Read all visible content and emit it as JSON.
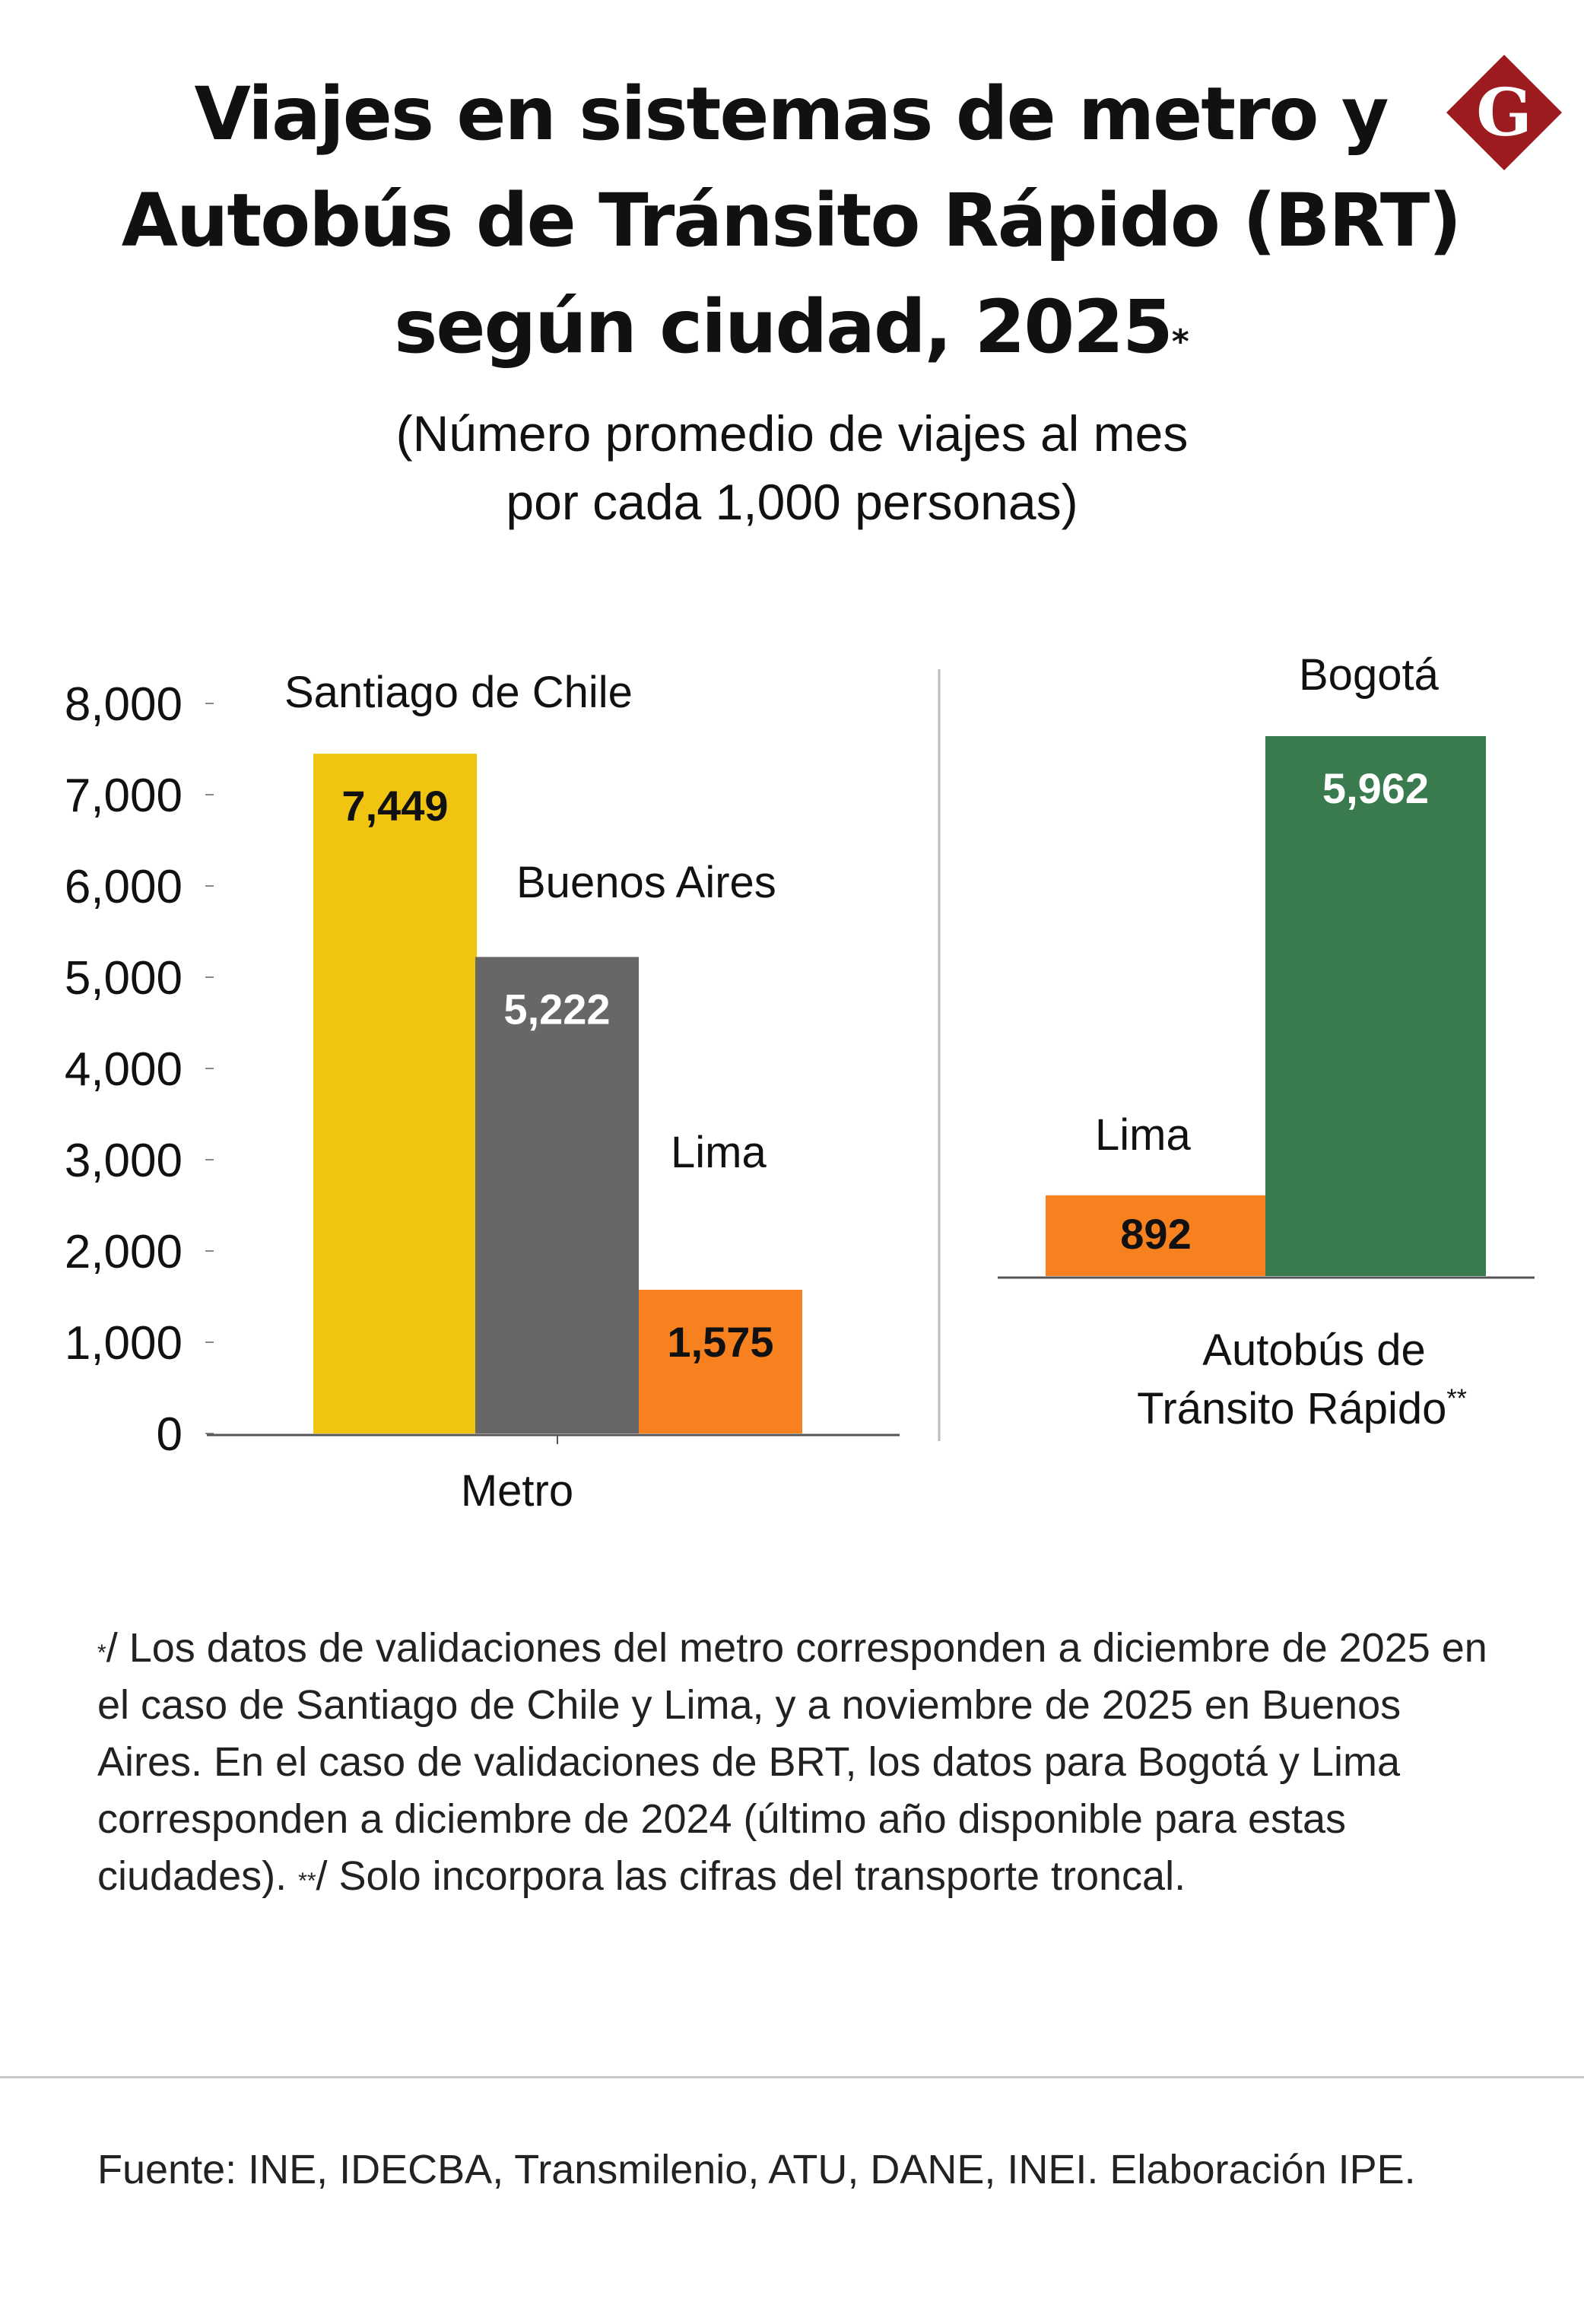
{
  "title": {
    "line1": "Viajes en sistemas de metro y",
    "line2": "Autobús de Tránsito Rápido (BRT)",
    "line3": "según ciudad, 2025",
    "mark": "*"
  },
  "logo": {
    "letter": "G",
    "color": "#9b1b1e"
  },
  "subtitle": {
    "line1": "(Número promedio de viajes al mes",
    "line2": "por cada 1,000 personas)"
  },
  "chart_data": [
    {
      "type": "bar",
      "group": "Metro",
      "categories": [
        "Santiago de Chile",
        "Buenos Aires",
        "Lima"
      ],
      "values": [
        7449,
        5222,
        1575
      ],
      "value_labels": [
        "7,449",
        "5,222",
        "1,575"
      ],
      "colors": [
        "#f1c411",
        "#676767",
        "#f7811e"
      ],
      "value_label_colors": [
        "#111111",
        "#ffffff",
        "#111111"
      ],
      "ylim": [
        0,
        8000
      ],
      "yticks": [
        "0",
        "1,000",
        "2,000",
        "3,000",
        "4,000",
        "5,000",
        "6,000",
        "7,000",
        "8,000"
      ],
      "xlabel": "Metro"
    },
    {
      "type": "bar",
      "group": "Autobús de Tránsito Rápido",
      "group_mark": "**",
      "xlabel_line1": "Autobús de",
      "xlabel_line2": "Tránsito Rápido",
      "categories": [
        "Lima",
        "Bogotá"
      ],
      "values": [
        892,
        5962
      ],
      "value_labels": [
        "892",
        "5,962"
      ],
      "colors": [
        "#f7811e",
        "#3a7a4f"
      ],
      "value_label_colors": [
        "#111111",
        "#ffffff"
      ]
    }
  ],
  "footnote": {
    "mark1": "*",
    "text1": "/ Los datos de validaciones del metro corresponden a diciembre de 2025 en el caso de Santiago de Chile y Lima, y a noviembre de 2025 en Buenos Aires. En el caso de validaciones de BRT, los datos para Bogotá y Lima corresponden a diciembre de 2024 (último año disponible para estas ciudades).",
    "mark2": "**",
    "text2": "/ Solo incorpora las cifras del transporte troncal."
  },
  "source": "Fuente: INE, IDECBA, Transmilenio, ATU, DANE, INEI. Elaboración IPE."
}
